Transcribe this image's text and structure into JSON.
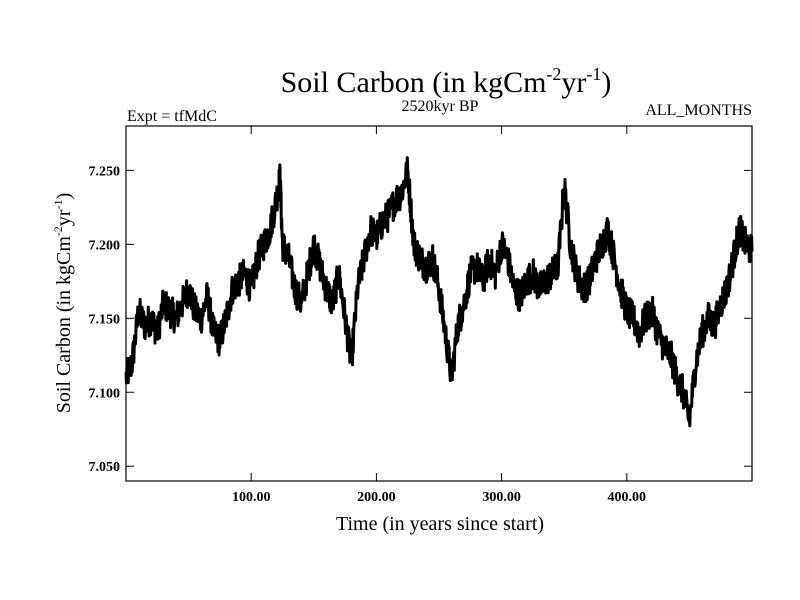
{
  "chart_data": {
    "type": "line",
    "title": {
      "main": "Soil Carbon (in kgCm",
      "sup1": "-2",
      "mid": "yr",
      "sup2": "-1",
      "close": ")"
    },
    "subtitle_left": "Expt = tfMdC",
    "subtitle_center": "2520kyr BP",
    "subtitle_right": "ALL_MONTHS",
    "xlabel": "Time (in years since start)",
    "ylabel": {
      "main": "Soil Carbon (in kgCm",
      "sup1": "-2",
      "mid": "yr",
      "sup2": "-1",
      "close": ")"
    },
    "xlim": [
      0,
      500
    ],
    "ylim": [
      7.04,
      7.28
    ],
    "xticks": [
      {
        "value": 100,
        "label": "100.00"
      },
      {
        "value": 200,
        "label": "200.00"
      },
      {
        "value": 300,
        "label": "300.00"
      },
      {
        "value": 400,
        "label": "400.00"
      }
    ],
    "yticks": [
      {
        "value": 7.05,
        "label": "7.050"
      },
      {
        "value": 7.1,
        "label": "7.100"
      },
      {
        "value": 7.15,
        "label": "7.150"
      },
      {
        "value": 7.2,
        "label": "7.200"
      },
      {
        "value": 7.25,
        "label": "7.250"
      }
    ],
    "series": [
      {
        "name": "Soil Carbon",
        "color": "#000000",
        "x": [
          0,
          5,
          10,
          15,
          20,
          25,
          30,
          35,
          40,
          45,
          50,
          55,
          60,
          65,
          70,
          75,
          80,
          85,
          90,
          95,
          100,
          105,
          110,
          115,
          120,
          123,
          125,
          130,
          135,
          140,
          145,
          150,
          155,
          160,
          165,
          170,
          175,
          180,
          185,
          190,
          195,
          200,
          205,
          210,
          215,
          220,
          225,
          230,
          235,
          240,
          245,
          250,
          255,
          260,
          265,
          270,
          275,
          280,
          285,
          290,
          295,
          300,
          305,
          310,
          315,
          320,
          325,
          330,
          335,
          340,
          345,
          350,
          355,
          360,
          365,
          370,
          375,
          380,
          385,
          390,
          395,
          400,
          405,
          410,
          415,
          420,
          425,
          430,
          435,
          440,
          445,
          450,
          455,
          460,
          465,
          470,
          475,
          480,
          485,
          490,
          495,
          500
        ],
        "y": [
          7.11,
          7.12,
          7.155,
          7.145,
          7.15,
          7.14,
          7.16,
          7.155,
          7.15,
          7.16,
          7.17,
          7.155,
          7.15,
          7.165,
          7.14,
          7.135,
          7.15,
          7.17,
          7.175,
          7.18,
          7.17,
          7.19,
          7.2,
          7.21,
          7.23,
          7.245,
          7.2,
          7.19,
          7.17,
          7.16,
          7.18,
          7.2,
          7.185,
          7.17,
          7.16,
          7.18,
          7.15,
          7.12,
          7.17,
          7.19,
          7.21,
          7.205,
          7.215,
          7.22,
          7.23,
          7.235,
          7.25,
          7.2,
          7.19,
          7.185,
          7.19,
          7.17,
          7.14,
          7.11,
          7.145,
          7.16,
          7.18,
          7.185,
          7.175,
          7.19,
          7.18,
          7.2,
          7.19,
          7.17,
          7.165,
          7.175,
          7.18,
          7.17,
          7.175,
          7.18,
          7.185,
          7.24,
          7.2,
          7.18,
          7.17,
          7.175,
          7.19,
          7.2,
          7.21,
          7.19,
          7.17,
          7.155,
          7.15,
          7.14,
          7.15,
          7.155,
          7.14,
          7.13,
          7.125,
          7.11,
          7.1,
          7.08,
          7.12,
          7.14,
          7.15,
          7.145,
          7.16,
          7.17,
          7.19,
          7.21,
          7.2,
          7.195
        ]
      }
    ]
  }
}
